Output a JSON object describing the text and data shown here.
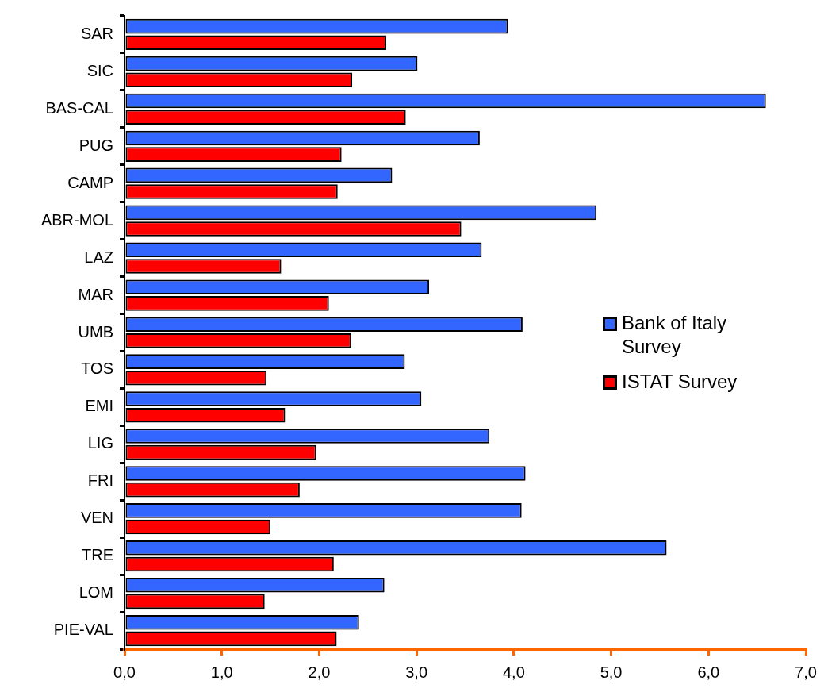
{
  "chart_data": {
    "type": "bar",
    "orientation": "horizontal",
    "categories": [
      "SAR",
      "SIC",
      "BAS-CAL",
      "PUG",
      "CAMP",
      "ABR-MOL",
      "LAZ",
      "MAR",
      "UMB",
      "TOS",
      "EMI",
      "LIG",
      "FRI",
      "VEN",
      "TRE",
      "LOM",
      "PIE-VAL"
    ],
    "series": [
      {
        "name": "Bank of Italy Survey",
        "color": "#3366ff",
        "values": [
          3.94,
          3.01,
          6.59,
          3.65,
          2.75,
          4.85,
          3.67,
          3.13,
          4.09,
          2.88,
          3.05,
          3.75,
          4.12,
          4.08,
          5.57,
          2.67,
          2.41
        ]
      },
      {
        "name": "ISTAT Survey",
        "color": "#ff0000",
        "values": [
          2.69,
          2.34,
          2.89,
          2.23,
          2.19,
          3.46,
          1.61,
          2.1,
          2.33,
          1.46,
          1.65,
          1.97,
          1.8,
          1.5,
          2.15,
          1.44,
          2.18
        ]
      }
    ],
    "xlim": [
      0,
      7
    ],
    "xticks": [
      {
        "value": 0,
        "label": "0,0"
      },
      {
        "value": 1,
        "label": "1,0"
      },
      {
        "value": 2,
        "label": "2,0"
      },
      {
        "value": 3,
        "label": "3,0"
      },
      {
        "value": 4,
        "label": "4,0"
      },
      {
        "value": 5,
        "label": "5,0"
      },
      {
        "value": 6,
        "label": "6,0"
      },
      {
        "value": 7,
        "label": "7,0"
      }
    ],
    "grid": false,
    "legend": "right"
  }
}
